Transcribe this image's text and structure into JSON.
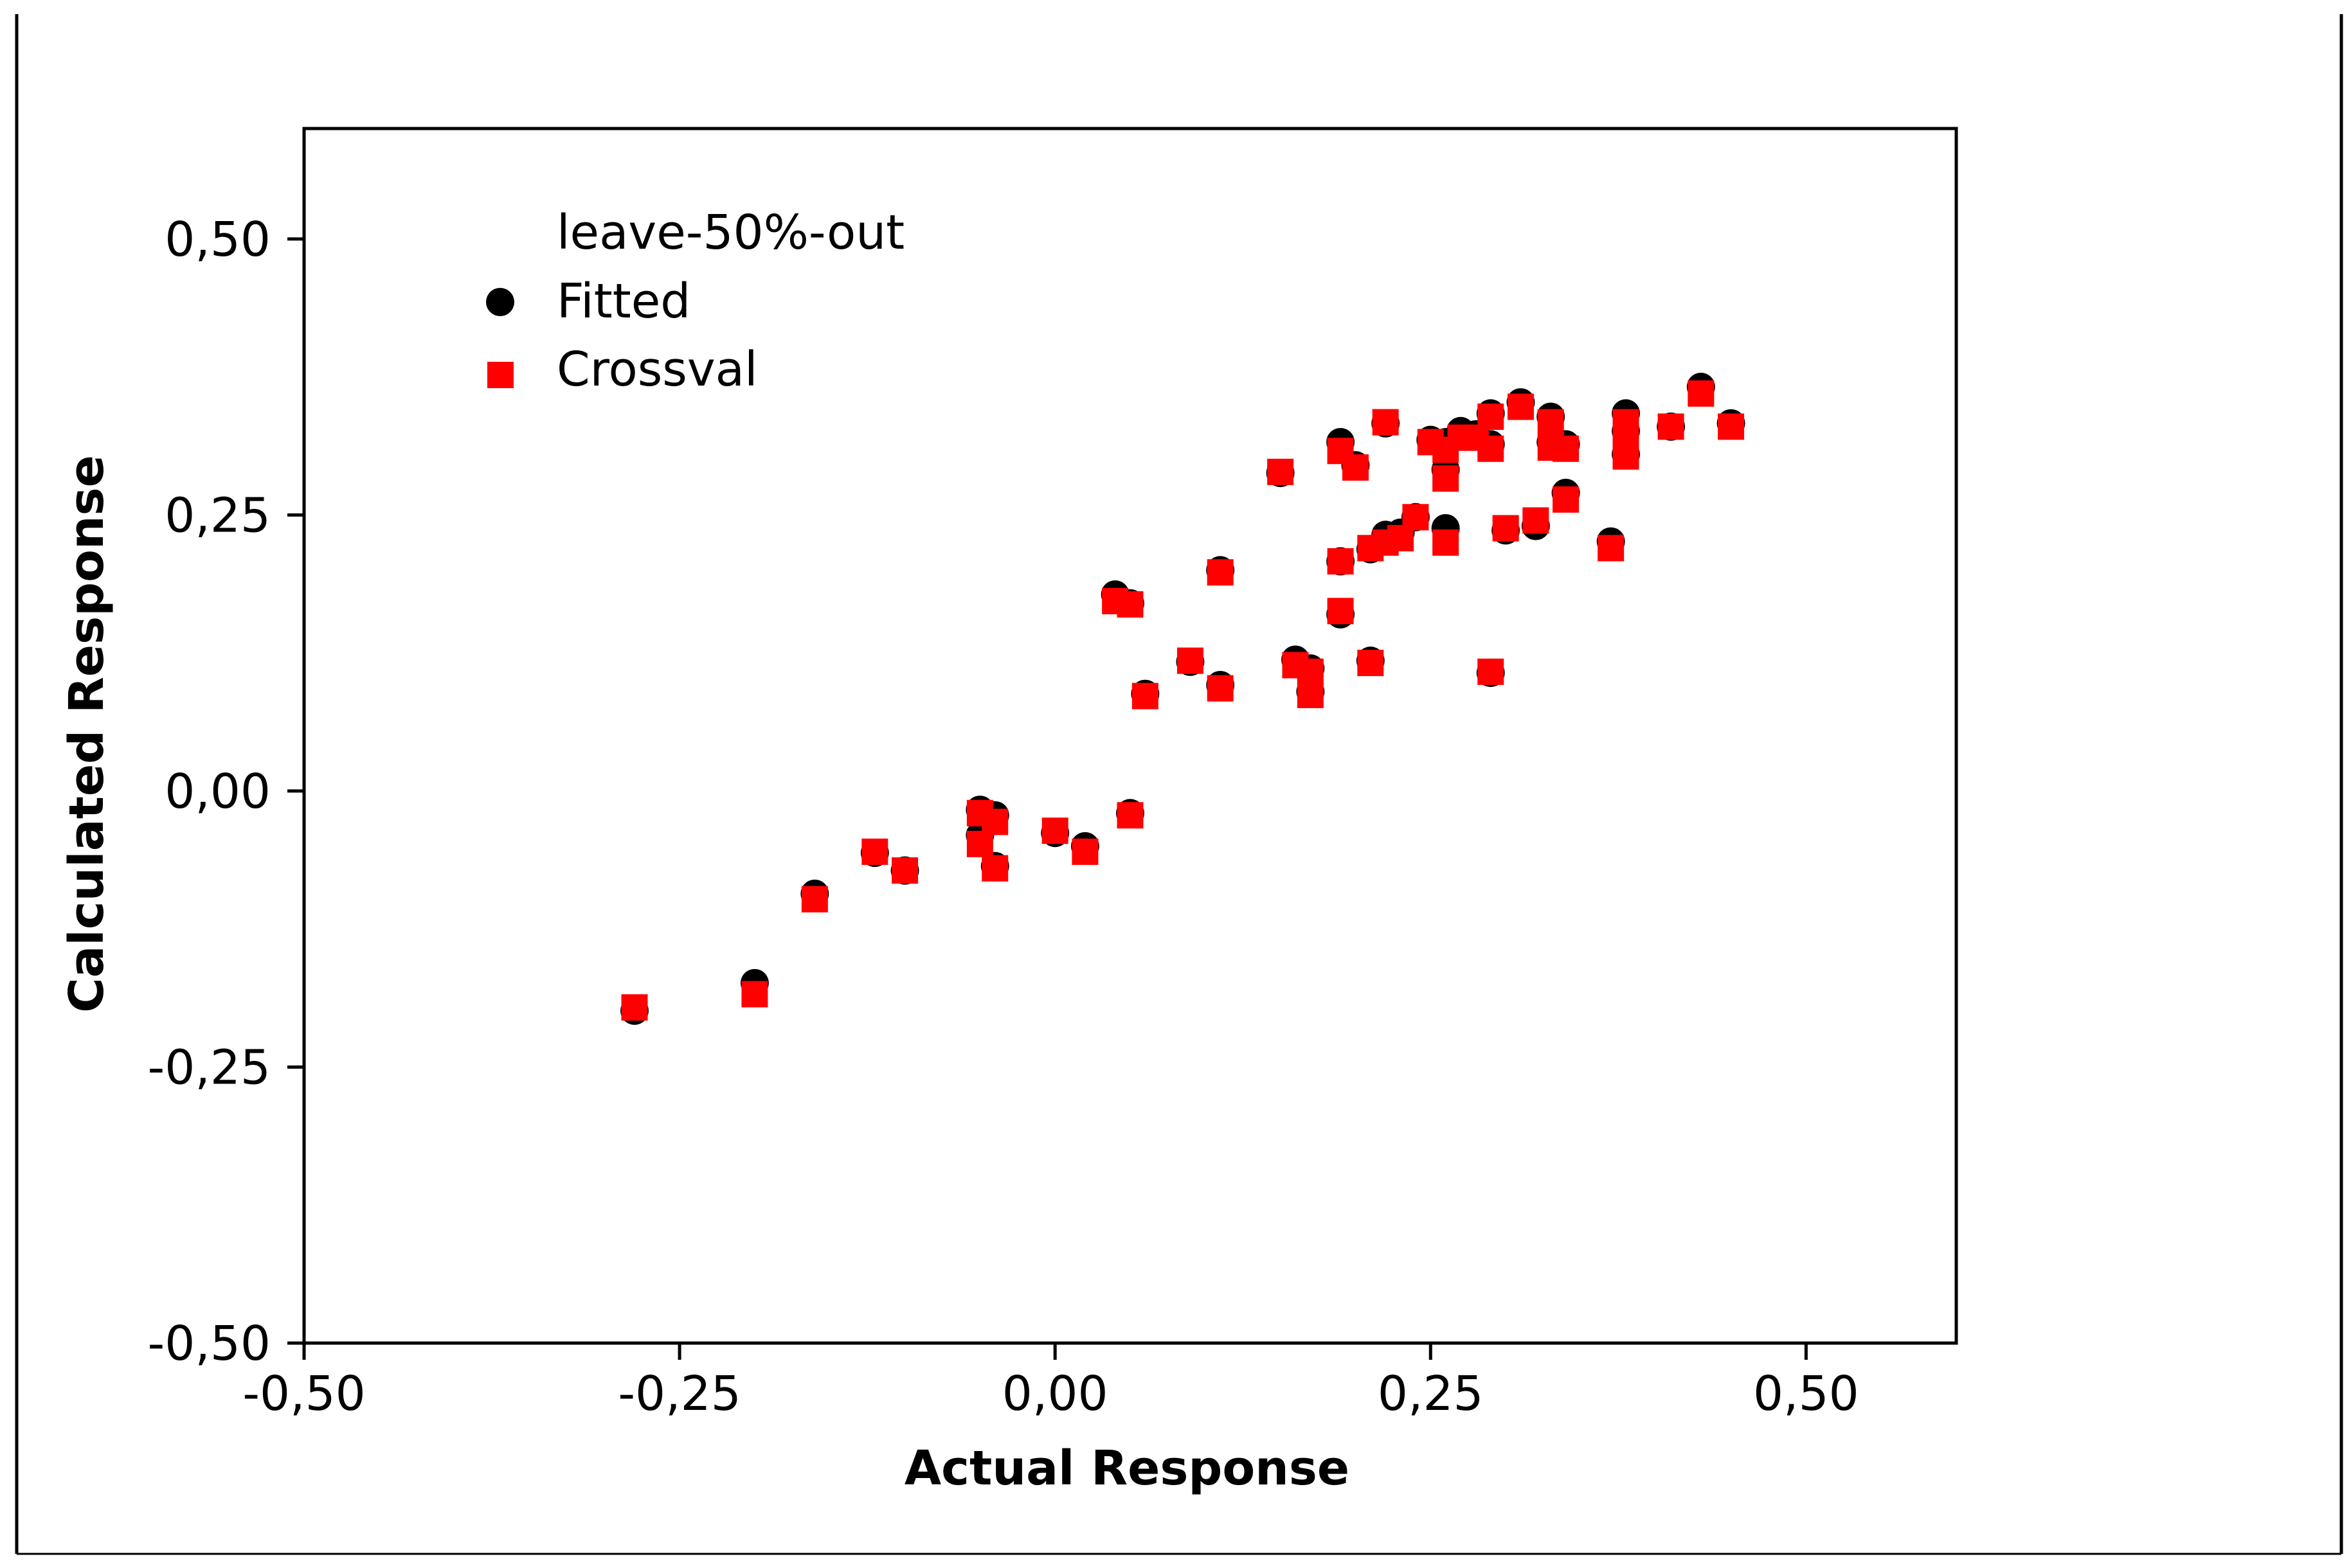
{
  "chart_data": {
    "type": "scatter",
    "xlabel": "Actual Response",
    "ylabel": "Calculated Response",
    "xlim": [
      -0.5,
      0.6
    ],
    "ylim": [
      -0.5,
      0.6
    ],
    "x_ticks": [
      -0.5,
      -0.25,
      0.0,
      0.25,
      0.5
    ],
    "x_tick_labels": [
      "-0,50",
      "-0,25",
      "0,00",
      "0,25",
      "0,50"
    ],
    "y_ticks": [
      -0.5,
      -0.25,
      0.0,
      0.25,
      0.5
    ],
    "y_tick_labels": [
      "-0,50",
      "-0,25",
      "0,00",
      "0,25",
      "0,50"
    ],
    "grid": false,
    "legend": {
      "title": "leave-50%-out",
      "position": "top-left"
    },
    "series": [
      {
        "name": "Fitted",
        "marker": "circle",
        "color": "#000000",
        "points": [
          [
            -0.28,
            -0.199
          ],
          [
            -0.2,
            -0.174
          ],
          [
            -0.16,
            -0.093
          ],
          [
            -0.12,
            -0.056
          ],
          [
            -0.1,
            -0.072
          ],
          [
            -0.05,
            -0.017
          ],
          [
            -0.05,
            -0.04
          ],
          [
            -0.04,
            -0.022
          ],
          [
            -0.04,
            -0.068
          ],
          [
            0.0,
            -0.038
          ],
          [
            0.02,
            -0.05
          ],
          [
            0.05,
            -0.02
          ],
          [
            0.04,
            0.178
          ],
          [
            0.05,
            0.17
          ],
          [
            0.06,
            0.088
          ],
          [
            0.09,
            0.117
          ],
          [
            0.11,
            0.2
          ],
          [
            0.11,
            0.096
          ],
          [
            0.15,
            0.288
          ],
          [
            0.16,
            0.119
          ],
          [
            0.17,
            0.111
          ],
          [
            0.17,
            0.09
          ],
          [
            0.19,
            0.316
          ],
          [
            0.19,
            0.16
          ],
          [
            0.19,
            0.208
          ],
          [
            0.2,
            0.295
          ],
          [
            0.21,
            0.219
          ],
          [
            0.21,
            0.118
          ],
          [
            0.22,
            0.333
          ],
          [
            0.22,
            0.232
          ],
          [
            0.23,
            0.234
          ],
          [
            0.24,
            0.248
          ],
          [
            0.25,
            0.318
          ],
          [
            0.26,
            0.316
          ],
          [
            0.26,
            0.291
          ],
          [
            0.26,
            0.238
          ],
          [
            0.27,
            0.326
          ],
          [
            0.28,
            0.323
          ],
          [
            0.29,
            0.342
          ],
          [
            0.29,
            0.314
          ],
          [
            0.29,
            0.107
          ],
          [
            0.3,
            0.236
          ],
          [
            0.31,
            0.352
          ],
          [
            0.32,
            0.24
          ],
          [
            0.33,
            0.339
          ],
          [
            0.33,
            0.316
          ],
          [
            0.34,
            0.27
          ],
          [
            0.34,
            0.314
          ],
          [
            0.37,
            0.226
          ],
          [
            0.38,
            0.342
          ],
          [
            0.38,
            0.326
          ],
          [
            0.38,
            0.305
          ],
          [
            0.41,
            0.33
          ],
          [
            0.43,
            0.366
          ],
          [
            0.45,
            0.333
          ]
        ]
      },
      {
        "name": "Crossval",
        "marker": "square",
        "color": "#ff0000",
        "points": [
          [
            -0.28,
            -0.196
          ],
          [
            -0.2,
            -0.184
          ],
          [
            -0.16,
            -0.098
          ],
          [
            -0.12,
            -0.055
          ],
          [
            -0.1,
            -0.072
          ],
          [
            -0.05,
            -0.02
          ],
          [
            -0.05,
            -0.048
          ],
          [
            -0.04,
            -0.028
          ],
          [
            -0.04,
            -0.07
          ],
          [
            0.0,
            -0.036
          ],
          [
            0.02,
            -0.055
          ],
          [
            0.05,
            -0.022
          ],
          [
            0.04,
            0.172
          ],
          [
            0.05,
            0.169
          ],
          [
            0.06,
            0.086
          ],
          [
            0.09,
            0.118
          ],
          [
            0.11,
            0.198
          ],
          [
            0.11,
            0.093
          ],
          [
            0.15,
            0.289
          ],
          [
            0.16,
            0.114
          ],
          [
            0.17,
            0.108
          ],
          [
            0.17,
            0.087
          ],
          [
            0.19,
            0.308
          ],
          [
            0.19,
            0.163
          ],
          [
            0.19,
            0.208
          ],
          [
            0.2,
            0.293
          ],
          [
            0.21,
            0.22
          ],
          [
            0.21,
            0.116
          ],
          [
            0.22,
            0.334
          ],
          [
            0.22,
            0.225
          ],
          [
            0.23,
            0.229
          ],
          [
            0.24,
            0.248
          ],
          [
            0.25,
            0.316
          ],
          [
            0.26,
            0.309
          ],
          [
            0.26,
            0.283
          ],
          [
            0.26,
            0.225
          ],
          [
            0.27,
            0.32
          ],
          [
            0.28,
            0.32
          ],
          [
            0.29,
            0.339
          ],
          [
            0.29,
            0.31
          ],
          [
            0.29,
            0.108
          ],
          [
            0.3,
            0.238
          ],
          [
            0.31,
            0.348
          ],
          [
            0.32,
            0.245
          ],
          [
            0.33,
            0.334
          ],
          [
            0.33,
            0.311
          ],
          [
            0.34,
            0.264
          ],
          [
            0.34,
            0.31
          ],
          [
            0.37,
            0.22
          ],
          [
            0.38,
            0.334
          ],
          [
            0.38,
            0.318
          ],
          [
            0.38,
            0.303
          ],
          [
            0.41,
            0.33
          ],
          [
            0.43,
            0.36
          ],
          [
            0.45,
            0.33
          ]
        ]
      }
    ]
  }
}
